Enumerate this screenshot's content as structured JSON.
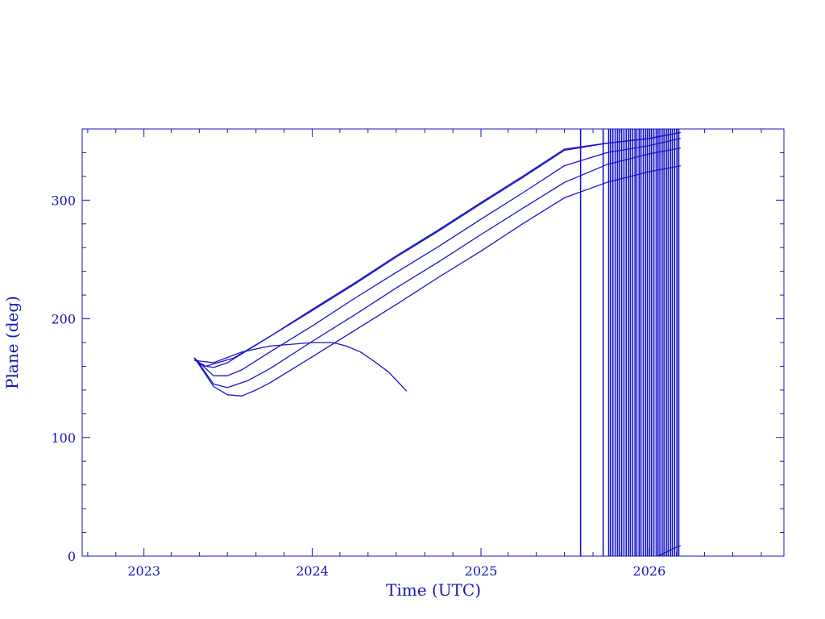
{
  "chart_data": {
    "type": "line",
    "title": "",
    "xlabel": "Time (UTC)",
    "ylabel": "Plane (deg)",
    "xlim": [
      "2022-08-20",
      "2026-10-20"
    ],
    "ylim": [
      0,
      360
    ],
    "x_ticks": [
      "2023",
      "2024",
      "2025",
      "2026"
    ],
    "y_ticks": [
      0,
      100,
      200,
      300
    ],
    "grid": false,
    "colors": {
      "line": "#1414c8",
      "axis": "#1414b4",
      "background": "#ffffff"
    },
    "series": [
      {
        "x": [
          "2023-04-20",
          "2023-05-01",
          "2023-05-15",
          "2023-06-01",
          "2023-07-15",
          "2023-10-01",
          "2024-01-01",
          "2024-04-01",
          "2024-07-01",
          "2024-10-01",
          "2025-01-01",
          "2025-04-01",
          "2025-07-01",
          "2025-10-01",
          "2026-01-01",
          "2026-03-10"
        ],
        "y": [
          167,
          162,
          160,
          162,
          167,
          185,
          208,
          230,
          253,
          275,
          298,
          320,
          343,
          348,
          352,
          357
        ]
      },
      {
        "x": [
          "2023-04-20",
          "2023-05-01",
          "2023-05-15",
          "2023-06-01",
          "2023-07-01",
          "2023-10-01",
          "2024-01-01",
          "2024-04-01",
          "2024-07-01",
          "2024-10-01",
          "2025-01-01",
          "2025-04-01",
          "2025-07-01",
          "2025-10-01",
          "2026-01-01",
          "2026-03-10"
        ],
        "y": [
          167,
          163,
          160,
          159,
          163,
          185,
          207,
          229,
          252,
          274,
          297,
          319,
          342,
          348,
          352,
          357
        ]
      },
      {
        "x": [
          "2023-04-20",
          "2023-05-01",
          "2023-06-01",
          "2023-07-01",
          "2023-08-01",
          "2023-10-01",
          "2024-01-01",
          "2024-04-01",
          "2024-07-01",
          "2024-10-01",
          "2025-01-01",
          "2025-04-01",
          "2025-07-01",
          "2025-10-01",
          "2026-01-01",
          "2026-03-10"
        ],
        "y": [
          167,
          163,
          152,
          152,
          157,
          172,
          194,
          217,
          239,
          261,
          284,
          306,
          329,
          340,
          346,
          352
        ]
      },
      {
        "x": [
          "2023-04-20",
          "2023-05-01",
          "2023-06-01",
          "2023-07-01",
          "2023-08-15",
          "2023-10-01",
          "2024-01-01",
          "2024-04-01",
          "2024-07-01",
          "2024-10-01",
          "2025-01-01",
          "2025-04-01",
          "2025-07-01",
          "2025-10-01",
          "2026-01-01",
          "2026-03-10"
        ],
        "y": [
          167,
          162,
          145,
          142,
          148,
          158,
          181,
          203,
          226,
          248,
          271,
          293,
          315,
          330,
          339,
          344
        ]
      },
      {
        "x": [
          "2023-04-20",
          "2023-05-01",
          "2023-06-01",
          "2023-07-01",
          "2023-08-01",
          "2023-09-01",
          "2023-10-01",
          "2024-01-01",
          "2024-04-01",
          "2024-07-01",
          "2024-10-01",
          "2025-01-01",
          "2025-04-01",
          "2025-07-01",
          "2025-10-01",
          "2026-01-01",
          "2026-03-10"
        ],
        "y": [
          167,
          161,
          143,
          136,
          135,
          140,
          146,
          168,
          190,
          212,
          235,
          257,
          280,
          302,
          315,
          324,
          329
        ]
      },
      {
        "x": [
          "2023-04-20",
          "2023-06-01",
          "2023-08-01",
          "2023-10-01",
          "2024-01-01",
          "2024-02-15",
          "2024-03-15",
          "2024-04-15",
          "2024-05-15",
          "2024-06-15",
          "2024-07-24"
        ],
        "y": [
          165,
          163,
          172,
          177,
          180,
          180,
          177,
          172,
          164,
          155,
          139
        ]
      },
      {
        "x": [
          "2026-01-20",
          "2026-02-20",
          "2026-03-10"
        ],
        "y": [
          0,
          6,
          9
        ]
      }
    ],
    "vertical_lines": [
      "2025-08-05",
      "2025-09-23",
      "2025-10-05",
      "2025-10-09",
      "2025-10-14",
      "2025-10-19",
      "2025-10-24",
      "2025-10-28",
      "2025-11-02",
      "2025-11-07",
      "2025-11-12",
      "2025-11-17",
      "2025-11-21",
      "2025-11-26",
      "2025-12-01",
      "2025-12-05",
      "2025-12-10",
      "2025-12-14",
      "2025-12-19",
      "2025-12-24",
      "2025-12-28",
      "2026-01-02",
      "2026-01-06",
      "2026-01-11",
      "2026-01-16",
      "2026-01-20",
      "2026-01-24",
      "2026-01-29",
      "2026-02-02",
      "2026-02-07",
      "2026-02-11",
      "2026-02-16",
      "2026-02-20",
      "2026-02-25",
      "2026-03-02",
      "2026-03-06"
    ]
  }
}
